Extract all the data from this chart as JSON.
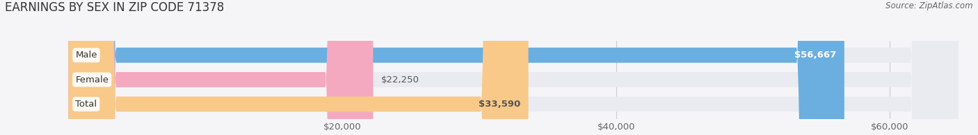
{
  "title": "EARNINGS BY SEX IN ZIP CODE 71378",
  "source": "Source: ZipAtlas.com",
  "categories": [
    "Male",
    "Female",
    "Total"
  ],
  "values": [
    56667,
    22250,
    33590
  ],
  "bar_colors": [
    "#6aafe0",
    "#f4a9c0",
    "#f9c98a"
  ],
  "bar_bg_color": "#eaebf0",
  "label_colors": [
    "#ffffff",
    "#555555",
    "#555555"
  ],
  "label_texts": [
    "$56,667",
    "$22,250",
    "$33,590"
  ],
  "x_min": 0,
  "x_max": 65000,
  "x_ticks": [
    20000,
    40000,
    60000
  ],
  "x_tick_labels": [
    "$20,000",
    "$40,000",
    "$60,000"
  ],
  "bar_height": 0.62,
  "title_fontsize": 12,
  "tick_fontsize": 9.5,
  "label_fontsize": 9.5,
  "cat_fontsize": 9.5,
  "source_fontsize": 8.5,
  "background_color": "#f5f5f8",
  "plot_bg_color": "#f5f5f8"
}
